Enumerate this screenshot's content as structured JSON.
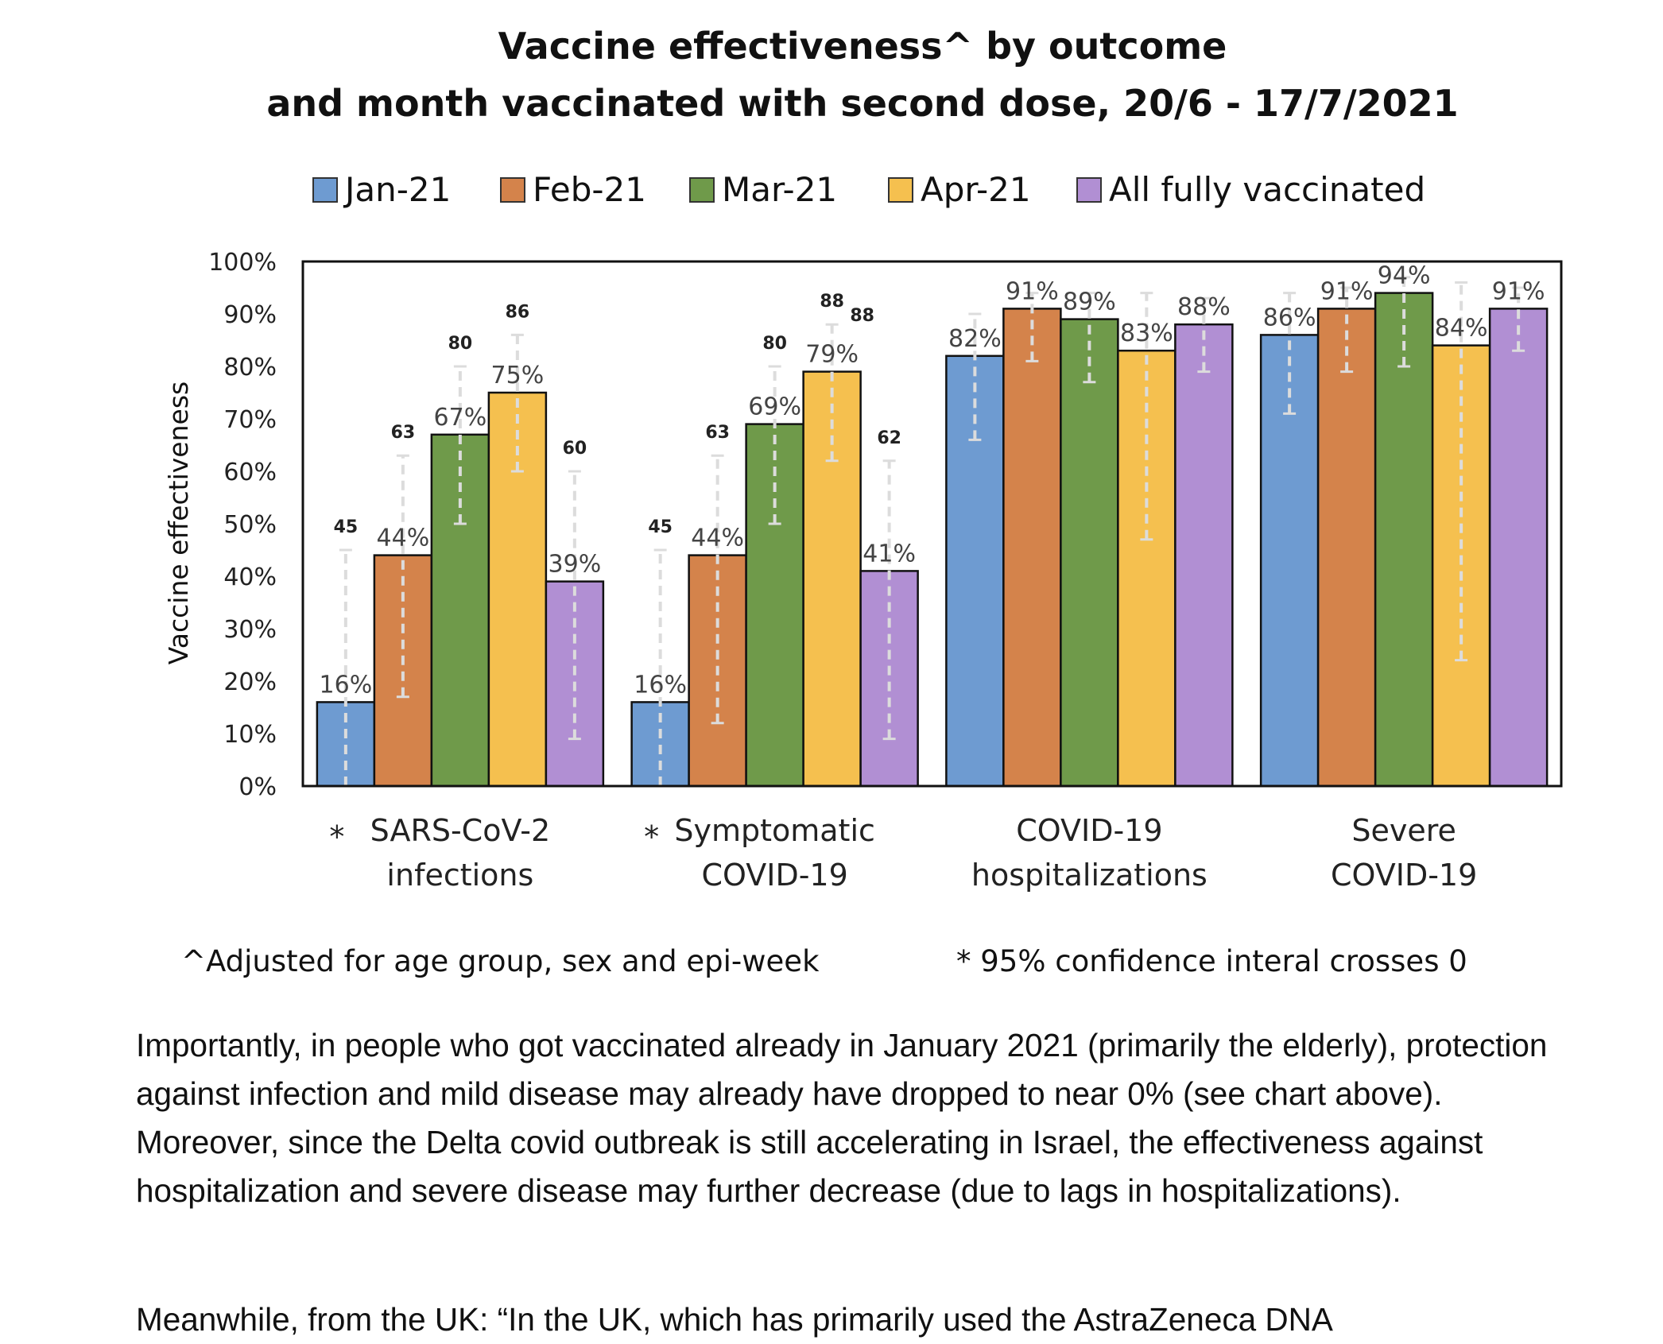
{
  "colors": {
    "jan": "#6e9bd1",
    "feb": "#d4834b",
    "mar": "#6f9a4a",
    "apr": "#f5c04f",
    "all": "#b18fd3",
    "error_bar": "#dcdcdc"
  },
  "chart_data": {
    "type": "bar",
    "title": "Vaccine effectiveness^ by outcome",
    "subtitle": "and month vaccinated with second dose, 20/6 - 17/7/2021",
    "xlabel": "",
    "ylabel": "Vaccine effectiveness",
    "ylim": [
      0,
      100
    ],
    "yticks": [
      "0%",
      "10%",
      "20%",
      "30%",
      "40%",
      "50%",
      "60%",
      "70%",
      "80%",
      "90%",
      "100%"
    ],
    "grid": false,
    "legend_position": "top",
    "categories": [
      {
        "lines": [
          "SARS-CoV-2",
          "infections"
        ],
        "marker": "*"
      },
      {
        "lines": [
          "Symptomatic",
          "COVID-19"
        ],
        "marker": "*"
      },
      {
        "lines": [
          "COVID-19",
          "hospitalizations"
        ],
        "marker": ""
      },
      {
        "lines": [
          "Severe",
          "COVID-19"
        ],
        "marker": ""
      }
    ],
    "series": [
      {
        "name": "Jan-21",
        "color_key": "jan",
        "values": [
          16,
          16,
          82,
          86
        ],
        "labels": [
          "16%",
          "16%",
          "82%",
          "86%"
        ],
        "ci_lower": [
          0,
          0,
          66,
          71
        ],
        "ci_upper": [
          45,
          45,
          90,
          94
        ],
        "ci_upper_labels": [
          "45",
          "45",
          "",
          ""
        ]
      },
      {
        "name": "Feb-21",
        "color_key": "feb",
        "values": [
          44,
          44,
          91,
          91
        ],
        "labels": [
          "44%",
          "44%",
          "91%",
          "91%"
        ],
        "ci_lower": [
          17,
          12,
          81,
          79
        ],
        "ci_upper": [
          63,
          63,
          94,
          95
        ],
        "ci_upper_labels": [
          "63",
          "63",
          "",
          ""
        ]
      },
      {
        "name": "Mar-21",
        "color_key": "mar",
        "values": [
          67,
          69,
          89,
          94
        ],
        "labels": [
          "67%",
          "69%",
          "89%",
          "94%"
        ],
        "ci_lower": [
          50,
          50,
          77,
          80
        ],
        "ci_upper": [
          80,
          80,
          94,
          97
        ],
        "ci_upper_labels": [
          "80",
          "80",
          "",
          ""
        ]
      },
      {
        "name": "Apr-21",
        "color_key": "apr",
        "values": [
          75,
          79,
          83,
          84
        ],
        "labels": [
          "75%",
          "79%",
          "83%",
          "84%"
        ],
        "ci_lower": [
          60,
          62,
          47,
          24
        ],
        "ci_upper": [
          86,
          88,
          94,
          96
        ],
        "ci_upper_labels": [
          "86",
          "88",
          "",
          ""
        ]
      },
      {
        "name": "All fully vaccinated",
        "color_key": "all",
        "values": [
          39,
          41,
          88,
          91
        ],
        "labels": [
          "39%",
          "41%",
          "88%",
          "91%"
        ],
        "ci_lower": [
          9,
          9,
          79,
          83
        ],
        "ci_upper": [
          60,
          62,
          93,
          95
        ],
        "ci_upper_labels": [
          "60",
          "62",
          "",
          ""
        ]
      }
    ],
    "extra_ci_label": {
      "text": "88",
      "category": 1
    },
    "footnotes": {
      "left": "^Adjusted for age group, sex and epi-week",
      "right": "* 95% confidence interal  crosses 0"
    }
  },
  "article": {
    "paragraph": "Importantly, in people who got vaccinated already in January 2021 (primarily the elderly), protection against infection and mild disease may already have dropped to near 0% (see chart above). Moreover, since the Delta covid outbreak is still accelerating in Israel, the effectiveness against hospitalization and severe disease may further decrease (due to lags in hospitalizations).",
    "next_line": "Meanwhile, from the UK: “In the UK, which has primarily used the AstraZeneca DNA"
  }
}
